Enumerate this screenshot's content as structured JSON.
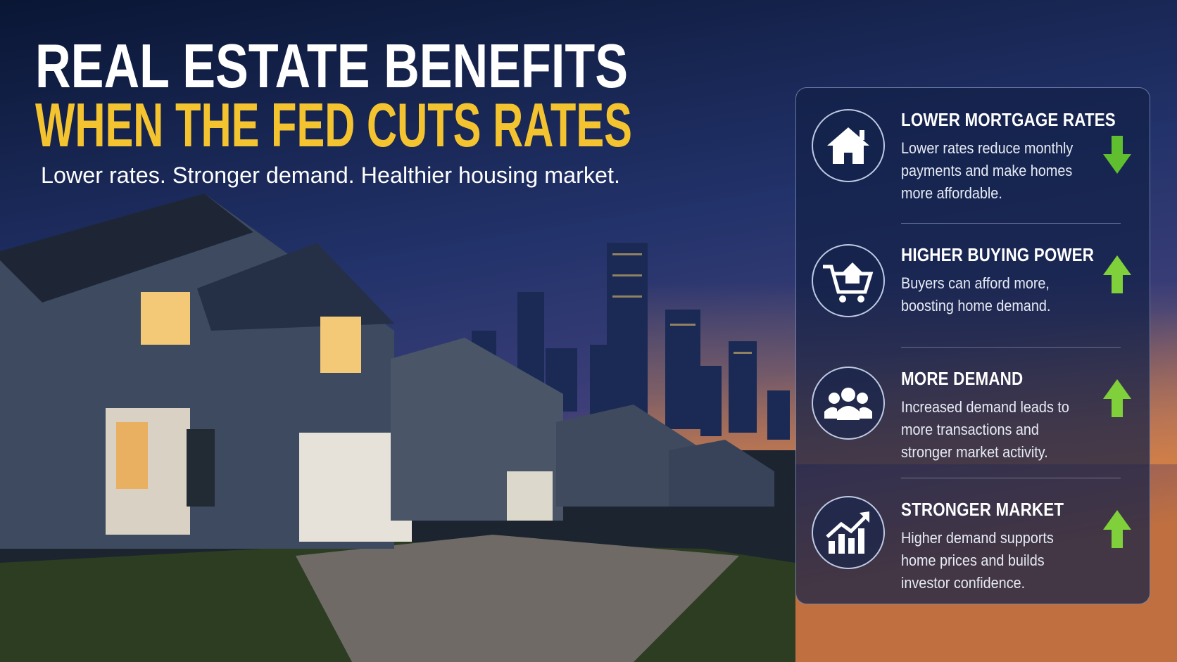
{
  "header": {
    "title_line1": "REAL ESTATE BENEFITS",
    "title_line2": "WHEN THE FED CUTS RATES",
    "subtitle": "Lower rates. Stronger demand. Healthier housing market."
  },
  "benefits": [
    {
      "title": "LOWER MORTGAGE RATES",
      "description": "Lower rates reduce monthly payments and make homes more affordable."
    },
    {
      "title": "HIGHER BUYING POWER",
      "description": "Buyers can afford more, boosting home demand."
    },
    {
      "title": "MORE DEMAND",
      "description": "Increased demand leads to more transactions and stronger market activity."
    },
    {
      "title": "STRONGER MARKET",
      "description": "Higher demand supports home prices and builds investor confidence."
    }
  ]
}
